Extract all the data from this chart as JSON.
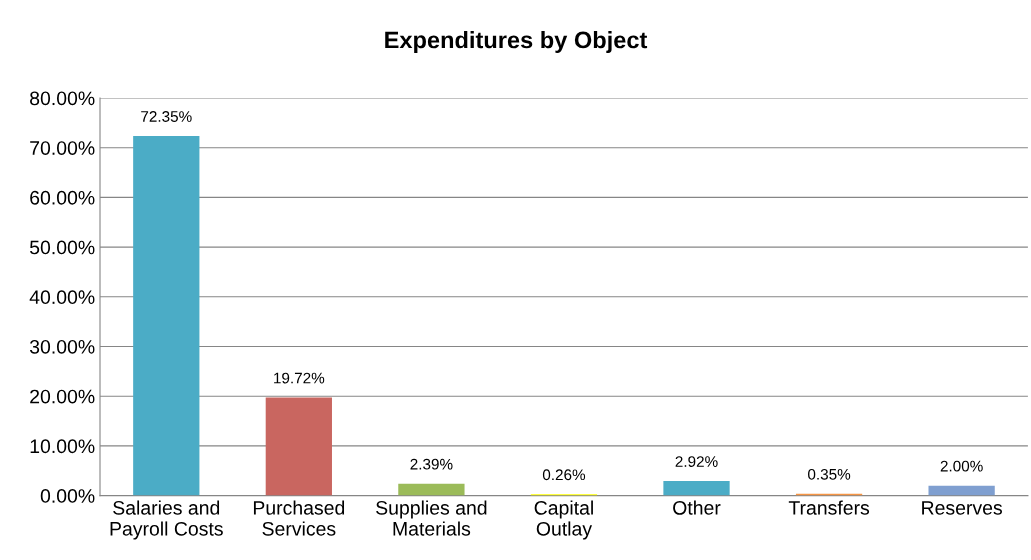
{
  "chart_data": {
    "type": "bar",
    "title": "Expenditures by Object",
    "categories": [
      "Salaries and\nPayroll Costs",
      "Purchased\nServices",
      "Supplies and\nMaterials",
      "Capital\nOutlay",
      "Other",
      "Transfers",
      "Reserves"
    ],
    "values": [
      72.35,
      19.72,
      2.39,
      0.26,
      2.92,
      0.35,
      2.0
    ],
    "value_labels": [
      "72.35%",
      "19.72%",
      "2.39%",
      "0.26%",
      "2.92%",
      "0.35%",
      "2.00%"
    ],
    "colors": [
      "#4bacc6",
      "#c96660",
      "#9bbb59",
      "#ffff00",
      "#4bacc6",
      "#f79646",
      "#7f9fd0"
    ],
    "ylim": [
      0,
      80
    ],
    "yticks": [
      {
        "value": 0,
        "label": "0.00%"
      },
      {
        "value": 10,
        "label": "10.00%"
      },
      {
        "value": 20,
        "label": "20.00%"
      },
      {
        "value": 30,
        "label": "30.00%"
      },
      {
        "value": 40,
        "label": "40.00%"
      },
      {
        "value": 50,
        "label": "50.00%"
      },
      {
        "value": 60,
        "label": "60.00%"
      },
      {
        "value": 70,
        "label": "70.00%"
      },
      {
        "value": 80,
        "label": "80.00%"
      }
    ],
    "grid": "y",
    "legend": false
  }
}
